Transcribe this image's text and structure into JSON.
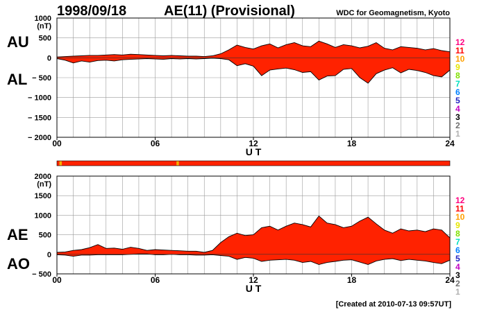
{
  "header": {
    "date": "1998/09/18",
    "title": "AE(11) (Provisional)",
    "org": "WDC for Geomagnetism, Kyoto"
  },
  "footer": {
    "created": "[Created at 2010-07-13 09:57UT]"
  },
  "colors": {
    "fill": "#ff2200",
    "outline": "#000000",
    "grid": "#9a9a9a",
    "bar_base": "#ff2200",
    "bar_alt": "#f5b000",
    "legend": [
      "#ff0080",
      "#ff0000",
      "#ffa000",
      "#e6e600",
      "#80e000",
      "#00e0c0",
      "#0080ff",
      "#2020c0",
      "#c000c0",
      "#000000",
      "#707070",
      "#b0b0b0"
    ]
  },
  "legend_labels": [
    "12",
    "11",
    "10",
    "9",
    "8",
    "7",
    "6",
    "5",
    "4",
    "3",
    "2",
    "1"
  ],
  "chart_data": [
    {
      "type": "area",
      "name": "AU/AL",
      "left_labels": [
        "AU",
        "AL"
      ],
      "unit": "(nT)",
      "xlabel": "U T",
      "xlim": [
        0,
        24
      ],
      "xticks": [
        "00",
        "06",
        "12",
        "18",
        "24"
      ],
      "ylim": [
        -2000,
        1000
      ],
      "yticks": [
        "1000",
        "500",
        "0",
        "− 500",
        "− 1000",
        "− 1500",
        "− 2000"
      ],
      "grid": true,
      "x": [
        0,
        0.5,
        1,
        1.5,
        2,
        2.5,
        3,
        3.5,
        4,
        4.5,
        5,
        5.5,
        6,
        6.5,
        7,
        7.5,
        8,
        8.5,
        9,
        9.5,
        10,
        10.5,
        11,
        11.5,
        12,
        12.5,
        13,
        13.5,
        14,
        14.5,
        15,
        15.5,
        16,
        16.5,
        17,
        17.5,
        18,
        18.5,
        19,
        19.5,
        20,
        20.5,
        21,
        21.5,
        22,
        22.5,
        23,
        23.5,
        24
      ],
      "series": [
        {
          "name": "AU",
          "values": [
            20,
            30,
            40,
            50,
            60,
            60,
            70,
            80,
            70,
            90,
            80,
            70,
            60,
            50,
            60,
            50,
            40,
            40,
            30,
            50,
            100,
            200,
            320,
            260,
            220,
            300,
            350,
            250,
            330,
            380,
            300,
            280,
            420,
            350,
            260,
            330,
            300,
            250,
            290,
            380,
            240,
            200,
            280,
            260,
            240,
            200,
            230,
            180,
            150
          ]
        },
        {
          "name": "AL",
          "values": [
            -20,
            -60,
            -130,
            -80,
            -110,
            -70,
            -60,
            -80,
            -50,
            -40,
            -30,
            -20,
            -30,
            -40,
            -20,
            -30,
            -20,
            -30,
            -20,
            -10,
            -20,
            -50,
            -200,
            -150,
            -210,
            -450,
            -310,
            -280,
            -260,
            -300,
            -370,
            -350,
            -560,
            -460,
            -450,
            -290,
            -270,
            -500,
            -640,
            -400,
            -310,
            -250,
            -380,
            -290,
            -320,
            -370,
            -450,
            -480,
            -310
          ]
        }
      ],
      "quality_bar": null
    },
    {
      "type": "area",
      "name": "AE/AO",
      "left_labels": [
        "AE",
        "AO"
      ],
      "unit": "(nT)",
      "xlabel": "U T",
      "xlim": [
        0,
        24
      ],
      "xticks": [
        "00",
        "06",
        "12",
        "18",
        "24"
      ],
      "ylim": [
        -500,
        2000
      ],
      "yticks": [
        "2000",
        "1500",
        "1000",
        "500",
        "0",
        "− 500"
      ],
      "grid": true,
      "x": [
        0,
        0.5,
        1,
        1.5,
        2,
        2.5,
        3,
        3.5,
        4,
        4.5,
        5,
        5.5,
        6,
        6.5,
        7,
        7.5,
        8,
        8.5,
        9,
        9.5,
        10,
        10.5,
        11,
        11.5,
        12,
        12.5,
        13,
        13.5,
        14,
        14.5,
        15,
        15.5,
        16,
        16.5,
        17,
        17.5,
        18,
        18.5,
        19,
        19.5,
        20,
        20.5,
        21,
        21.5,
        22,
        22.5,
        23,
        23.5,
        24
      ],
      "series": [
        {
          "name": "AE",
          "values": [
            50,
            60,
            100,
            120,
            170,
            250,
            150,
            160,
            130,
            180,
            150,
            100,
            120,
            110,
            100,
            90,
            80,
            80,
            50,
            100,
            300,
            450,
            540,
            480,
            500,
            680,
            720,
            620,
            720,
            800,
            760,
            700,
            980,
            800,
            760,
            680,
            720,
            850,
            950,
            780,
            620,
            540,
            650,
            600,
            620,
            580,
            650,
            620,
            420
          ]
        },
        {
          "name": "AO",
          "values": [
            -10,
            -20,
            -50,
            -20,
            -20,
            -10,
            -10,
            -10,
            -10,
            0,
            10,
            10,
            -10,
            -10,
            0,
            -10,
            -10,
            -20,
            -20,
            -10,
            -30,
            -50,
            -130,
            -80,
            -100,
            -180,
            -150,
            -140,
            -130,
            -150,
            -210,
            -180,
            -260,
            -210,
            -180,
            -150,
            -140,
            -200,
            -260,
            -170,
            -130,
            -110,
            -160,
            -130,
            -150,
            -170,
            -210,
            -240,
            -150
          ]
        }
      ],
      "quality_bar": {
        "highlights": [
          {
            "hour": 0.15,
            "width_hours": 0.15
          },
          {
            "hour": 7.3,
            "width_hours": 0.15
          }
        ]
      }
    }
  ]
}
